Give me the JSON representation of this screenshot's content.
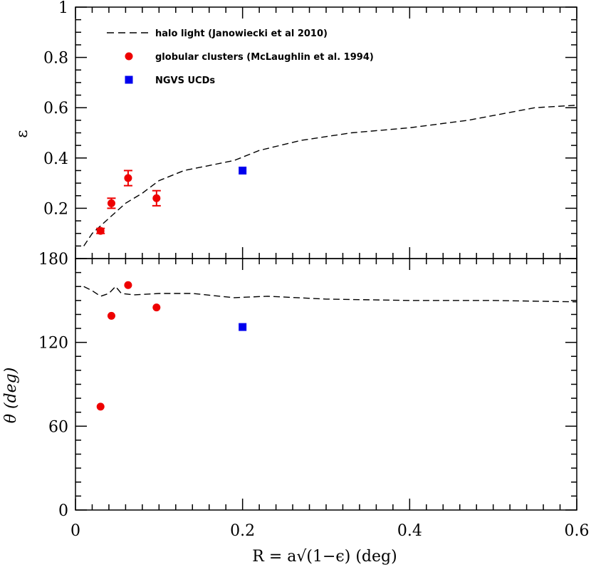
{
  "chart_data": [
    {
      "type": "line",
      "panel": "top",
      "ylabel": "ε",
      "xlim": [
        0,
        0.6
      ],
      "ylim": [
        0.0,
        1.0
      ],
      "y_ticks": [
        0.2,
        0.4,
        0.6,
        0.8,
        1.0
      ],
      "y_tick_labels": [
        "0.2",
        "0.4",
        "0.6",
        "0.8",
        "1"
      ],
      "x_ticks": [
        0,
        0.2,
        0.4,
        0.6
      ],
      "legend": {
        "position": "top-left",
        "entries": [
          {
            "label": "halo light (Janowiecki et al 2010)",
            "style": "dashed-line",
            "color": "#000000"
          },
          {
            "label": "globular clusters (McLaughlin et al. 1994)",
            "style": "circle",
            "color": "#ee0000"
          },
          {
            "label": "NGVS UCDs",
            "style": "square",
            "color": "#0000ee"
          }
        ]
      },
      "series": [
        {
          "name": "halo light (Janowiecki et al 2010)",
          "style": "dashed",
          "color": "#000000",
          "x": [
            0.01,
            0.02,
            0.04,
            0.06,
            0.08,
            0.1,
            0.13,
            0.16,
            0.19,
            0.22,
            0.27,
            0.33,
            0.4,
            0.47,
            0.55,
            0.6
          ],
          "y": [
            0.05,
            0.1,
            0.16,
            0.22,
            0.26,
            0.31,
            0.35,
            0.37,
            0.39,
            0.43,
            0.47,
            0.5,
            0.52,
            0.55,
            0.6,
            0.61
          ]
        },
        {
          "name": "globular clusters (McLaughlin et al. 1994)",
          "style": "circle",
          "color": "#ee0000",
          "x": [
            0.03,
            0.043,
            0.063,
            0.097
          ],
          "y": [
            0.11,
            0.22,
            0.32,
            0.24
          ],
          "yerr": [
            0.01,
            0.02,
            0.03,
            0.03
          ]
        },
        {
          "name": "NGVS UCDs",
          "style": "square",
          "color": "#0000ee",
          "x": [
            0.2
          ],
          "y": [
            0.35
          ]
        }
      ]
    },
    {
      "type": "line",
      "panel": "bottom",
      "ylabel": "θ (deg)",
      "xlabel": "R = a√(1−ϵ) (deg)",
      "xlim": [
        0,
        0.6
      ],
      "ylim": [
        0,
        180
      ],
      "y_ticks": [
        0,
        60,
        120,
        180
      ],
      "y_tick_labels": [
        "0",
        "60",
        "120",
        "180"
      ],
      "x_ticks": [
        0,
        0.2,
        0.4,
        0.6
      ],
      "x_tick_labels": [
        "0",
        "0.2",
        "0.4",
        "0.6"
      ],
      "series": [
        {
          "name": "halo light (Janowiecki et al 2010)",
          "style": "dashed",
          "color": "#000000",
          "x": [
            0.01,
            0.02,
            0.03,
            0.04,
            0.048,
            0.055,
            0.07,
            0.1,
            0.14,
            0.19,
            0.23,
            0.3,
            0.4,
            0.5,
            0.6
          ],
          "y": [
            160,
            157,
            153,
            155,
            160,
            155,
            154,
            155,
            155,
            152,
            153,
            151,
            150,
            150,
            149
          ]
        },
        {
          "name": "globular clusters (McLaughlin et al. 1994)",
          "style": "circle",
          "color": "#ee0000",
          "x": [
            0.03,
            0.043,
            0.063,
            0.097
          ],
          "y": [
            74,
            139,
            161,
            145
          ]
        },
        {
          "name": "NGVS UCDs",
          "style": "square",
          "color": "#0000ee",
          "x": [
            0.2
          ],
          "y": [
            131
          ]
        }
      ]
    }
  ]
}
